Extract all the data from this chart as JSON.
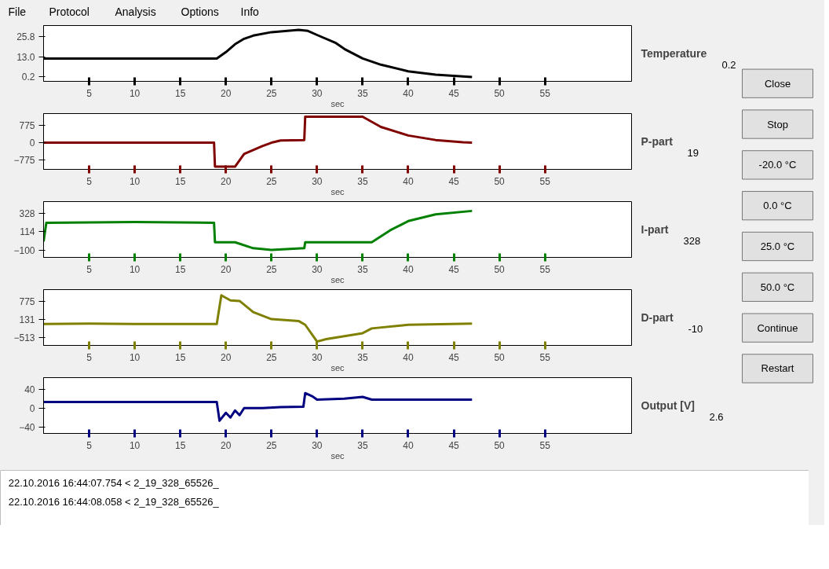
{
  "chart_data": [
    {
      "type": "other",
      "annotations": [
        "File",
        "Protocol",
        "Analysis",
        "Options",
        "Info"
      ]
    },
    {
      "type": "line",
      "annotations": [
        "Temperature",
        "0.2"
      ],
      "xlabel": "sec",
      "xlim": [
        0,
        64.5
      ],
      "xticks": [
        5,
        10,
        15,
        20,
        25,
        30,
        35,
        40,
        45,
        50,
        55
      ],
      "ylim": [
        -2.6,
        32.9
      ],
      "yticks": [
        0.2,
        {
          "value": 13,
          "label": "13.0"
        },
        25.8
      ],
      "x": [
        0,
        19,
        20,
        21,
        22,
        23,
        25,
        28,
        29,
        30,
        32,
        33,
        35,
        37,
        40,
        43,
        47
      ],
      "series": [
        {
          "color": "#000000",
          "values": [
            11.9,
            11.9,
            16,
            21,
            24.5,
            26.5,
            28.7,
            30.1,
            29.5,
            26.9,
            22,
            18,
            12,
            8,
            3.8,
            1.6,
            0.2
          ]
        }
      ]
    },
    {
      "type": "line",
      "annotations": [
        "P-part",
        "19"
      ],
      "xlabel": "sec",
      "xlim": [
        0,
        64.5
      ],
      "xticks": [
        5,
        10,
        15,
        20,
        25,
        30,
        35,
        40,
        45,
        50,
        55
      ],
      "ylim": [
        -1180,
        1290
      ],
      "yticks": [
        -775,
        0,
        775
      ],
      "x": [
        0,
        18.7,
        18.8,
        21,
        22,
        24,
        25,
        26,
        28.6,
        28.7,
        35,
        37,
        40,
        43,
        46,
        47
      ],
      "series": [
        {
          "color": "#800000",
          "values": [
            0,
            0,
            -1060,
            -1060,
            -500,
            -150,
            0,
            100,
            120,
            1150,
            1150,
            700,
            320,
            120,
            20,
            0
          ]
        }
      ]
    },
    {
      "type": "line",
      "annotations": [
        "I-part",
        "328"
      ],
      "xlabel": "sec",
      "xlim": [
        0,
        64.5
      ],
      "xticks": [
        5,
        10,
        15,
        20,
        25,
        30,
        35,
        40,
        45,
        50,
        55
      ],
      "ylim": [
        -188,
        470
      ],
      "yticks": [
        -100,
        114,
        328
      ],
      "x": [
        0,
        0.3,
        10,
        18.7,
        18.8,
        21,
        23,
        25,
        28.6,
        28.7,
        36,
        38,
        40,
        43,
        47
      ],
      "series": [
        {
          "color": "#008000",
          "values": [
            0,
            220,
            230,
            220,
            -10,
            -10,
            -80,
            -100,
            -80,
            -10,
            -10,
            130,
            240,
            320,
            360
          ]
        }
      ]
    },
    {
      "type": "line",
      "annotations": [
        "D-part",
        "-10"
      ],
      "xlabel": "sec",
      "xlim": [
        0,
        64.5
      ],
      "xticks": [
        5,
        10,
        15,
        20,
        25,
        30,
        35,
        40,
        45,
        50,
        55
      ],
      "ylim": [
        -786,
        1204
      ],
      "yticks": [
        -513,
        131,
        775
      ],
      "x": [
        0,
        5,
        10,
        15,
        19,
        19.5,
        20.5,
        21.5,
        23,
        25,
        28,
        28.7,
        30,
        31,
        35,
        36,
        40,
        47
      ],
      "series": [
        {
          "color": "#808000",
          "values": [
            -20,
            -10,
            -20,
            -20,
            -20,
            1000,
            820,
            800,
            400,
            150,
            80,
            -50,
            -650,
            -560,
            -350,
            -180,
            -50,
            -10
          ]
        }
      ]
    },
    {
      "type": "line",
      "annotations": [
        "Output [V]",
        "2.6"
      ],
      "xlabel": "sec",
      "xlim": [
        0,
        64.5
      ],
      "xticks": [
        5,
        10,
        15,
        20,
        25,
        30,
        35,
        40,
        45,
        50,
        55
      ],
      "ylim": [
        -54,
        65
      ],
      "yticks": [
        -40,
        0,
        40
      ],
      "x": [
        0,
        19,
        19.3,
        20,
        20.5,
        21,
        21.5,
        22,
        24,
        26,
        28.5,
        28.7,
        29.5,
        30,
        33,
        35,
        36,
        47
      ],
      "series": [
        {
          "color": "#000080",
          "values": [
            13,
            13,
            -27,
            -10,
            -20,
            -5,
            -15,
            0,
            0,
            2,
            3,
            32,
            25,
            18,
            20,
            24,
            18,
            18
          ]
        }
      ]
    },
    {
      "type": "other",
      "annotations": [
        "Close",
        "Stop",
        "-20.0 °C",
        "0.0 °C",
        "25.0 °C",
        "50.0 °C",
        "Continue",
        "Restart"
      ]
    },
    {
      "type": "other",
      "annotations": [
        "22.10.2016 16:44:07.754    < 2_19_328_65526_",
        "22.10.2016 16:44:08.058    < 2_19_328_65526_"
      ]
    }
  ]
}
